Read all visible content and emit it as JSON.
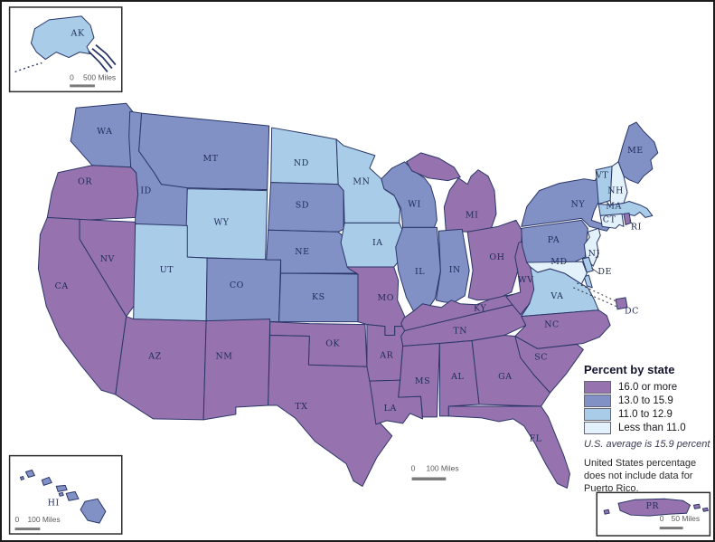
{
  "legend": {
    "title": "Percent by state",
    "categories": [
      {
        "label": "16.0 or more",
        "color": "#9673AE"
      },
      {
        "label": "13.0 to 15.9",
        "color": "#8191C5"
      },
      {
        "label": "11.0 to 12.9",
        "color": "#A9CCE8"
      },
      {
        "label": "Less than 11.0",
        "color": "#E3F1FA"
      }
    ],
    "average_note": "U.S. average is 15.9 percent",
    "footnote": "United States percentage does not include data for Puerto Rico."
  },
  "scale_bars": {
    "main": {
      "zero": "0",
      "label": "100 Miles"
    },
    "alaska": {
      "zero": "0",
      "label": "500 Miles"
    },
    "hawaii": {
      "zero": "0",
      "label": "100 Miles"
    },
    "puerto_rico": {
      "zero": "0",
      "label": "50 Miles"
    }
  },
  "map_colors": {
    "border": "#2A3668",
    "label": "#1F2B57",
    "background": "#FFFFFF"
  },
  "states": [
    {
      "abbr": "WA",
      "category": "13.0 to 15.9"
    },
    {
      "abbr": "OR",
      "category": "16.0 or more"
    },
    {
      "abbr": "CA",
      "category": "16.0 or more"
    },
    {
      "abbr": "NV",
      "category": "16.0 or more"
    },
    {
      "abbr": "ID",
      "category": "13.0 to 15.9"
    },
    {
      "abbr": "MT",
      "category": "13.0 to 15.9"
    },
    {
      "abbr": "WY",
      "category": "11.0 to 12.9"
    },
    {
      "abbr": "UT",
      "category": "11.0 to 12.9"
    },
    {
      "abbr": "CO",
      "category": "13.0 to 15.9"
    },
    {
      "abbr": "AZ",
      "category": "16.0 or more"
    },
    {
      "abbr": "NM",
      "category": "16.0 or more"
    },
    {
      "abbr": "ND",
      "category": "11.0 to 12.9"
    },
    {
      "abbr": "SD",
      "category": "13.0 to 15.9"
    },
    {
      "abbr": "NE",
      "category": "13.0 to 15.9"
    },
    {
      "abbr": "KS",
      "category": "13.0 to 15.9"
    },
    {
      "abbr": "OK",
      "category": "16.0 or more"
    },
    {
      "abbr": "TX",
      "category": "16.0 or more"
    },
    {
      "abbr": "MN",
      "category": "11.0 to 12.9"
    },
    {
      "abbr": "IA",
      "category": "11.0 to 12.9"
    },
    {
      "abbr": "MO",
      "category": "16.0 or more"
    },
    {
      "abbr": "AR",
      "category": "16.0 or more"
    },
    {
      "abbr": "LA",
      "category": "16.0 or more"
    },
    {
      "abbr": "WI",
      "category": "13.0 to 15.9"
    },
    {
      "abbr": "IL",
      "category": "13.0 to 15.9"
    },
    {
      "abbr": "MI",
      "category": "16.0 or more"
    },
    {
      "abbr": "IN",
      "category": "13.0 to 15.9"
    },
    {
      "abbr": "OH",
      "category": "16.0 or more"
    },
    {
      "abbr": "KY",
      "category": "16.0 or more"
    },
    {
      "abbr": "TN",
      "category": "16.0 or more"
    },
    {
      "abbr": "MS",
      "category": "16.0 or more"
    },
    {
      "abbr": "AL",
      "category": "16.0 or more"
    },
    {
      "abbr": "GA",
      "category": "16.0 or more"
    },
    {
      "abbr": "FL",
      "category": "16.0 or more"
    },
    {
      "abbr": "WV",
      "category": "16.0 or more"
    },
    {
      "abbr": "PA",
      "category": "13.0 to 15.9"
    },
    {
      "abbr": "NY",
      "category": "13.0 to 15.9"
    },
    {
      "abbr": "VA",
      "category": "11.0 to 12.9"
    },
    {
      "abbr": "NC",
      "category": "16.0 or more"
    },
    {
      "abbr": "SC",
      "category": "16.0 or more"
    },
    {
      "abbr": "ME",
      "category": "13.0 to 15.9"
    },
    {
      "abbr": "VT",
      "category": "11.0 to 12.9"
    },
    {
      "abbr": "NH",
      "category": "Less than 11.0"
    },
    {
      "abbr": "MA",
      "category": "11.0 to 12.9"
    },
    {
      "abbr": "CT",
      "category": "Less than 11.0"
    },
    {
      "abbr": "RI",
      "category": "16.0 or more"
    },
    {
      "abbr": "NJ",
      "category": "Less than 11.0"
    },
    {
      "abbr": "MD",
      "category": "Less than 11.0"
    },
    {
      "abbr": "DE",
      "category": "11.0 to 12.9"
    },
    {
      "abbr": "DC",
      "category": "16.0 or more"
    },
    {
      "abbr": "AK",
      "category": "11.0 to 12.9"
    },
    {
      "abbr": "HI",
      "category": "13.0 to 15.9"
    },
    {
      "abbr": "PR",
      "category": "16.0 or more"
    }
  ]
}
